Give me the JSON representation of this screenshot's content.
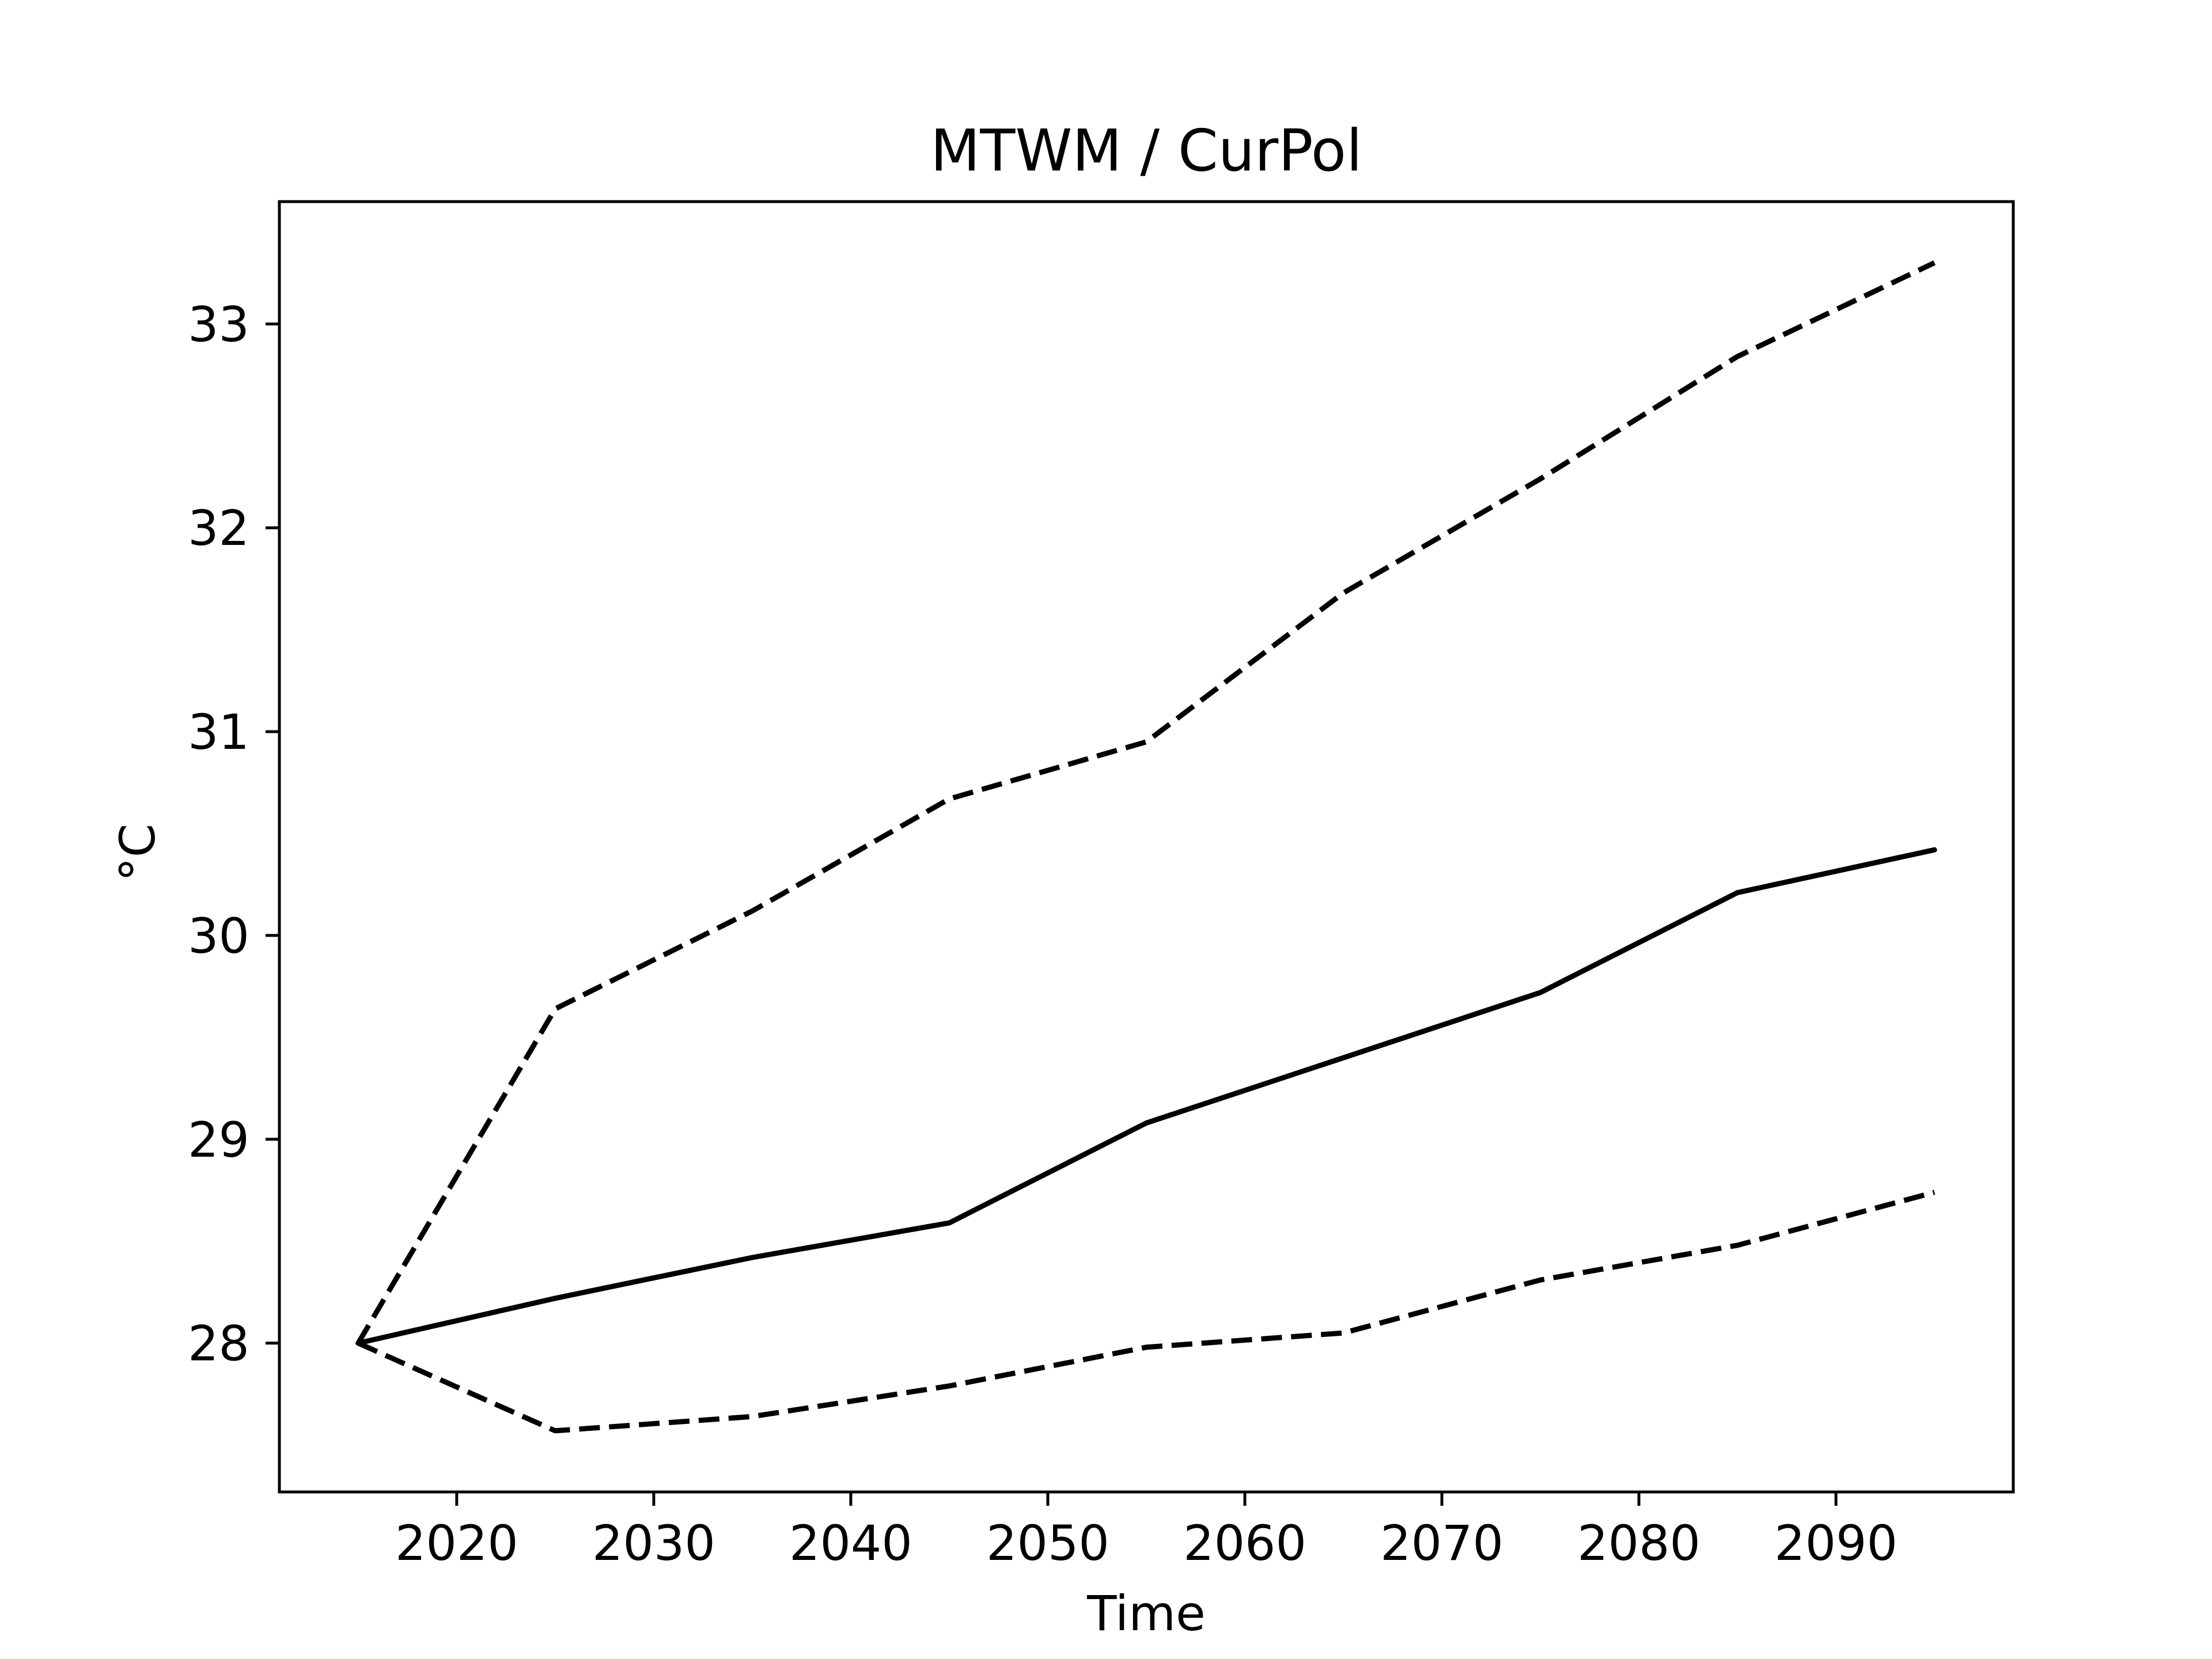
{
  "chart_data": {
    "type": "line",
    "title": "MTWM / CurPol",
    "xlabel": "Time",
    "ylabel": "°C",
    "xlim": [
      2011,
      2099
    ],
    "ylim": [
      27.27,
      33.6
    ],
    "xticks": [
      2020,
      2030,
      2040,
      2050,
      2060,
      2070,
      2080,
      2090
    ],
    "yticks": [
      28,
      29,
      30,
      31,
      32,
      33
    ],
    "x": [
      2015,
      2025,
      2035,
      2045,
      2055,
      2065,
      2075,
      2085,
      2095
    ],
    "grid": false,
    "legend": "none",
    "series": [
      {
        "style": "solid",
        "color": "#000000",
        "values": [
          28.0,
          28.22,
          28.42,
          28.59,
          29.08,
          29.4,
          29.72,
          30.21,
          30.42
        ]
      },
      {
        "style": "dashed",
        "color": "#000000",
        "values": [
          28.0,
          29.64,
          30.12,
          30.67,
          30.95,
          31.68,
          32.24,
          32.84,
          33.3
        ]
      },
      {
        "style": "dashed",
        "color": "#000000",
        "values": [
          28.0,
          27.57,
          27.64,
          27.79,
          27.98,
          28.05,
          28.31,
          28.48,
          28.74
        ]
      }
    ]
  }
}
